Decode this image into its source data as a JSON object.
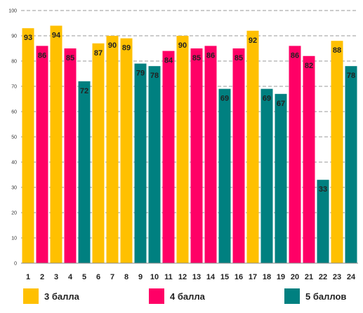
{
  "chart_data": {
    "type": "bar",
    "categories": [
      "1",
      "2",
      "3",
      "4",
      "5",
      "6",
      "7",
      "8",
      "9",
      "10",
      "11",
      "12",
      "13",
      "14",
      "15",
      "16",
      "17",
      "18",
      "19",
      "20",
      "21",
      "22",
      "23",
      "24"
    ],
    "values": [
      93,
      86,
      94,
      85,
      72,
      87,
      90,
      89,
      79,
      78,
      84,
      90,
      85,
      86,
      69,
      85,
      92,
      69,
      67,
      86,
      82,
      33,
      88,
      78
    ],
    "grades": [
      "3 балла",
      "4 балла",
      "3 балла",
      "4 балла",
      "5 баллов",
      "3 балла",
      "3 балла",
      "3 балла",
      "5 баллов",
      "5 баллов",
      "4 балла",
      "3 балла",
      "4 балла",
      "4 балла",
      "5 баллов",
      "4 балла",
      "3 балла",
      "5 баллов",
      "5 баллов",
      "4 балла",
      "4 балла",
      "5 баллов",
      "3 балла",
      "5 баллов"
    ],
    "ylim": [
      0,
      100
    ],
    "yticks": [
      "0",
      "10",
      "20",
      "30",
      "40",
      "50",
      "60",
      "70",
      "80",
      "90",
      "100"
    ],
    "grid": true,
    "legend_position": "bottom",
    "legend": [
      {
        "name": "3 балла",
        "color": "#FFC000"
      },
      {
        "name": "4 балла",
        "color": "#FF0066"
      },
      {
        "name": "5 баллов",
        "color": "#008080"
      }
    ]
  }
}
